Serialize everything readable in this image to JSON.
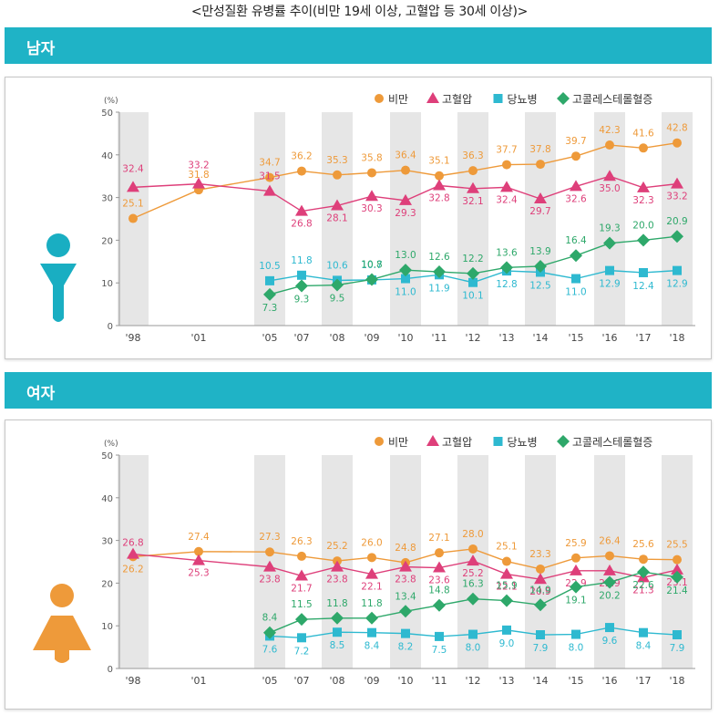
{
  "page_title": "<만성질환 유병률 추이(비만 19세 이상, 고혈압 등 30세 이상)>",
  "colors": {
    "header": "#1fb3c6",
    "obesity": "#ee9a3a",
    "hypertension": "#de3f7a",
    "diabetes": "#2eb9d0",
    "cholesterol": "#2ea86a",
    "male_icon": "#19aec2",
    "female_icon": "#ee9a3a"
  },
  "icons": {
    "male": "male-person-icon",
    "female": "female-person-icon"
  },
  "legend": {
    "obesity": "비만",
    "hypertension": "고혈압",
    "diabetes": "당뇨병",
    "cholesterol": "고콜레스테롤혈증"
  },
  "chart_data": [
    {
      "type": "line",
      "title": "남자",
      "ylabel": "(%)",
      "ylim": [
        0,
        50
      ],
      "yticks": [
        0,
        10,
        20,
        30,
        40,
        50
      ],
      "categories": [
        "'98",
        "'01",
        "'05",
        "'07",
        "'08",
        "'09",
        "'10",
        "'11",
        "'12",
        "'13",
        "'14",
        "'15",
        "'16",
        "'17",
        "'18"
      ],
      "grid": "alternating shaded columns",
      "legend_position": "top-right",
      "series": [
        {
          "key": "obesity",
          "name": "비만",
          "marker": "circle",
          "values": [
            25.1,
            31.8,
            34.7,
            36.2,
            35.3,
            35.8,
            36.4,
            35.1,
            36.3,
            37.7,
            37.8,
            39.7,
            42.3,
            41.6,
            42.8
          ]
        },
        {
          "key": "hypertension",
          "name": "고혈압",
          "marker": "triangle",
          "values": [
            32.4,
            33.2,
            31.5,
            26.8,
            28.1,
            30.3,
            29.3,
            32.8,
            32.1,
            32.4,
            29.7,
            32.6,
            35.0,
            32.3,
            33.2
          ]
        },
        {
          "key": "diabetes",
          "name": "당뇨병",
          "marker": "square",
          "values": [
            null,
            null,
            10.5,
            11.8,
            10.6,
            10.7,
            11.0,
            11.9,
            10.1,
            12.8,
            12.5,
            11.0,
            12.9,
            12.4,
            12.9
          ]
        },
        {
          "key": "cholesterol",
          "name": "고콜레스테롤혈증",
          "marker": "diamond",
          "values": [
            null,
            null,
            7.3,
            9.3,
            9.5,
            10.8,
            13.0,
            12.6,
            12.2,
            13.6,
            13.9,
            16.4,
            19.3,
            20.0,
            20.9
          ]
        }
      ]
    },
    {
      "type": "line",
      "title": "여자",
      "ylabel": "(%)",
      "ylim": [
        0,
        50
      ],
      "yticks": [
        0,
        10,
        20,
        30,
        40,
        50
      ],
      "categories": [
        "'98",
        "'01",
        "'05",
        "'07",
        "'08",
        "'09",
        "'10",
        "'11",
        "'12",
        "'13",
        "'14",
        "'15",
        "'16",
        "'17",
        "'18"
      ],
      "grid": "alternating shaded columns",
      "legend_position": "top-right",
      "series": [
        {
          "key": "obesity",
          "name": "비만",
          "marker": "circle",
          "values": [
            26.2,
            27.4,
            27.3,
            26.3,
            25.2,
            26.0,
            24.8,
            27.1,
            28.0,
            25.1,
            23.3,
            25.9,
            26.4,
            25.6,
            25.5
          ]
        },
        {
          "key": "hypertension",
          "name": "고혈압",
          "marker": "triangle",
          "values": [
            26.8,
            25.3,
            23.8,
            21.7,
            23.8,
            22.1,
            23.8,
            23.6,
            25.2,
            22.1,
            20.9,
            22.9,
            22.9,
            21.3,
            23.1
          ]
        },
        {
          "key": "diabetes",
          "name": "당뇨병",
          "marker": "square",
          "values": [
            null,
            null,
            7.6,
            7.2,
            8.5,
            8.4,
            8.2,
            7.5,
            8.0,
            9.0,
            7.9,
            8.0,
            9.6,
            8.4,
            7.9
          ]
        },
        {
          "key": "cholesterol",
          "name": "고콜레스테롤혈증",
          "marker": "diamond",
          "values": [
            null,
            null,
            8.4,
            11.5,
            11.8,
            11.8,
            13.4,
            14.8,
            16.3,
            15.9,
            14.9,
            19.1,
            20.2,
            22.6,
            21.4
          ]
        }
      ]
    }
  ]
}
